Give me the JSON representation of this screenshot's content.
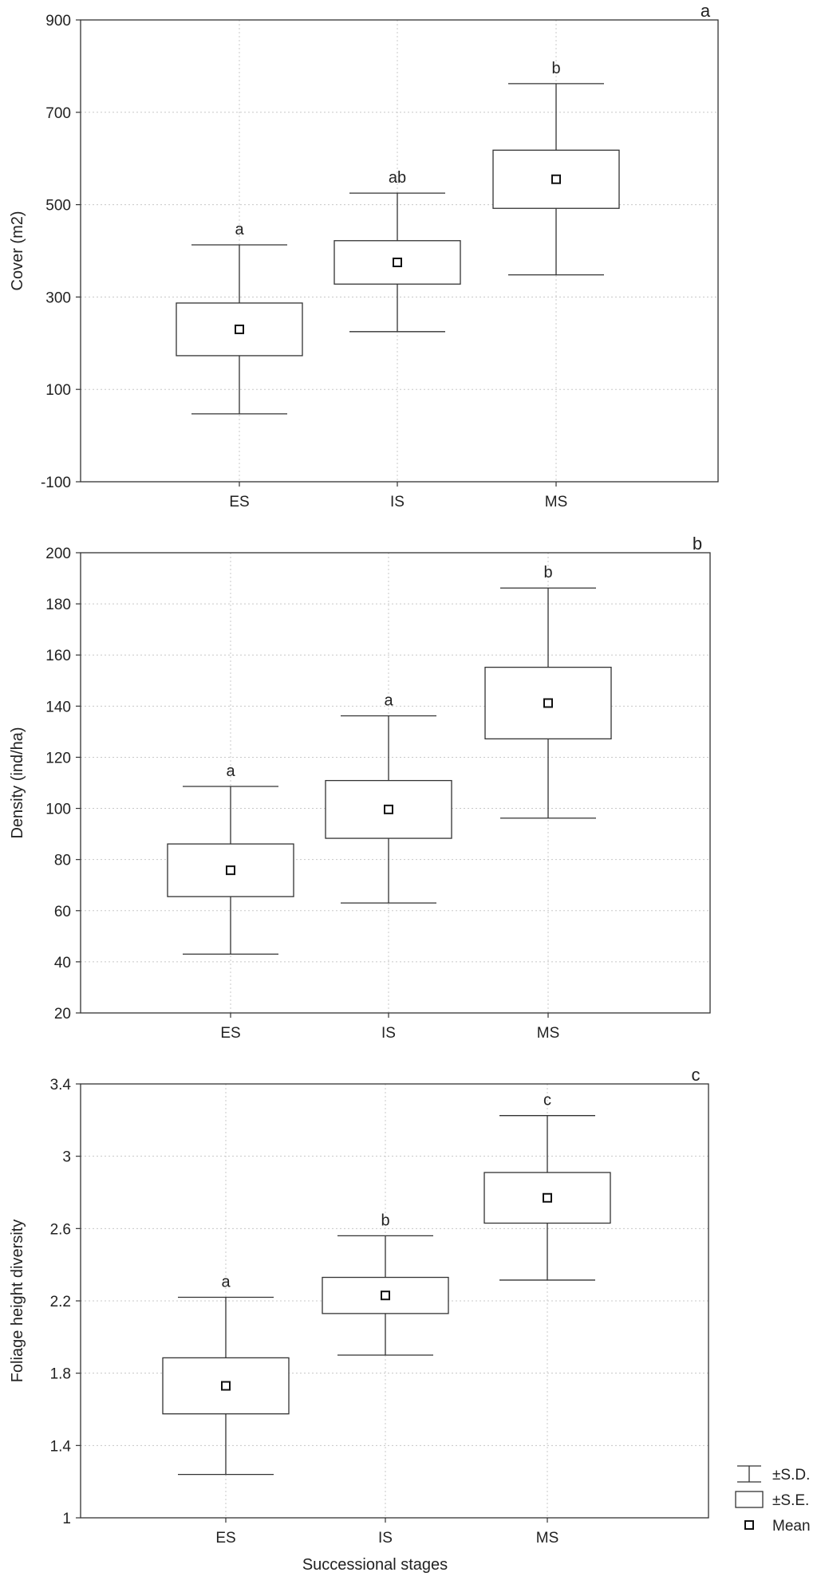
{
  "xlabel": "Successional stages",
  "legend": {
    "items": [
      {
        "key": "sd",
        "label": "±S.D."
      },
      {
        "key": "se",
        "label": "±S.E."
      },
      {
        "key": "mean",
        "label": "Mean"
      }
    ],
    "position": "bottom-right, outside plots"
  },
  "chart_data": [
    {
      "type": "box",
      "panel_label": "a",
      "ylabel": "Cover (m2)",
      "ylim": [
        -100,
        900
      ],
      "yticks": [
        -100,
        100,
        300,
        500,
        700,
        900
      ],
      "ytick_labels": [
        "-100",
        "100",
        "300",
        "500",
        "700",
        "900"
      ],
      "grid": true,
      "categories": [
        "ES",
        "IS",
        "MS"
      ],
      "mean": [
        230,
        375,
        555
      ],
      "se": [
        57,
        47,
        63
      ],
      "sd": [
        183,
        150,
        207
      ],
      "letters": [
        "a",
        "ab",
        "b"
      ]
    },
    {
      "type": "box",
      "panel_label": "b",
      "ylabel": "Density (ind/ha)",
      "ylim": [
        20,
        200
      ],
      "yticks": [
        20,
        40,
        60,
        80,
        100,
        120,
        140,
        160,
        180,
        200
      ],
      "ytick_labels": [
        "20",
        "40",
        "60",
        "80",
        "100",
        "120",
        "140",
        "160",
        "180",
        "200"
      ],
      "grid": true,
      "categories": [
        "ES",
        "IS",
        "MS"
      ],
      "mean": [
        75.8,
        99.6,
        141.2
      ],
      "se": [
        10.3,
        11.3,
        14.0
      ],
      "sd": [
        32.8,
        36.6,
        45.0
      ],
      "letters": [
        "a",
        "a",
        "b"
      ]
    },
    {
      "type": "box",
      "panel_label": "c",
      "ylabel": "Foliage height diversity",
      "ylim": [
        1,
        3.4
      ],
      "yticks": [
        1,
        1.4,
        1.8,
        2.2,
        2.6,
        3,
        3.4
      ],
      "ytick_labels": [
        "1",
        "1.4",
        "1.8",
        "2.2",
        "2.6",
        "3",
        "3.4"
      ],
      "grid": true,
      "categories": [
        "ES",
        "IS",
        "MS"
      ],
      "mean": [
        1.73,
        2.23,
        2.77
      ],
      "se": [
        0.155,
        0.1,
        0.14
      ],
      "sd": [
        0.49,
        0.33,
        0.455
      ],
      "letters": [
        "a",
        "b",
        "c"
      ]
    }
  ]
}
